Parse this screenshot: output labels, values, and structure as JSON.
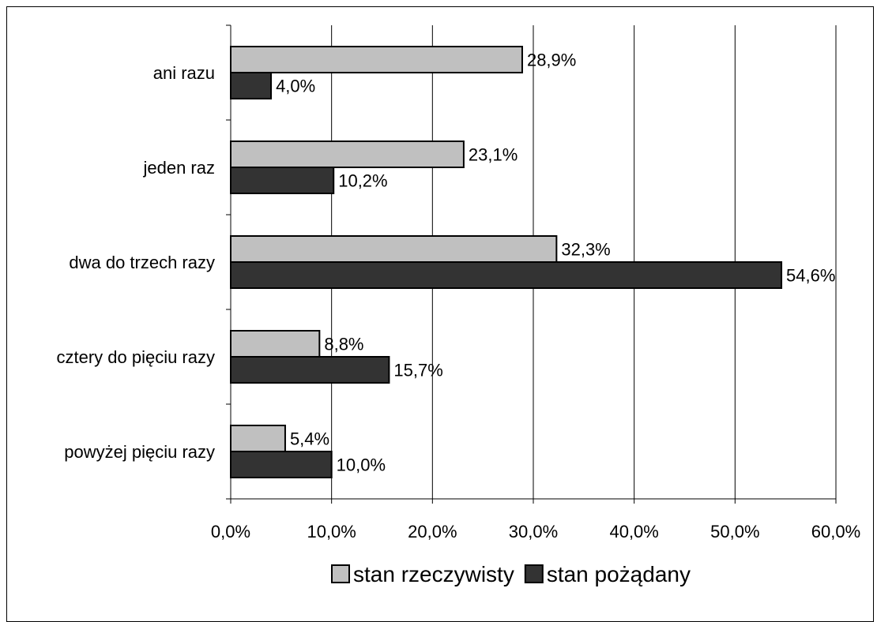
{
  "chart_data": {
    "type": "bar",
    "orientation": "horizontal",
    "categories": [
      "ani razu",
      "jeden raz",
      "dwa do trzech razy",
      "cztery do pięciu razy",
      "powyżej pięciu razy"
    ],
    "series": [
      {
        "name": "stan rzeczywisty",
        "color": "#c0c0c0",
        "values": [
          28.9,
          23.1,
          32.3,
          8.8,
          5.4
        ],
        "labels": [
          "28,9%",
          "23,1%",
          "32,3%",
          "8,8%",
          "5,4%"
        ]
      },
      {
        "name": "stan pożądany",
        "color": "#333333",
        "values": [
          4.0,
          10.2,
          54.6,
          15.7,
          10.0
        ],
        "labels": [
          "4,0%",
          "10,2%",
          "54,6%",
          "15,7%",
          "10,0%"
        ]
      }
    ],
    "xlim": [
      0,
      60
    ],
    "xticks": [
      0,
      10,
      20,
      30,
      40,
      50,
      60
    ],
    "xtick_labels": [
      "0,0%",
      "10,0%",
      "20,0%",
      "30,0%",
      "40,0%",
      "50,0%",
      "60,0%"
    ],
    "grid": "vertical",
    "legend_position": "bottom",
    "title": "",
    "xlabel": "",
    "ylabel": ""
  }
}
